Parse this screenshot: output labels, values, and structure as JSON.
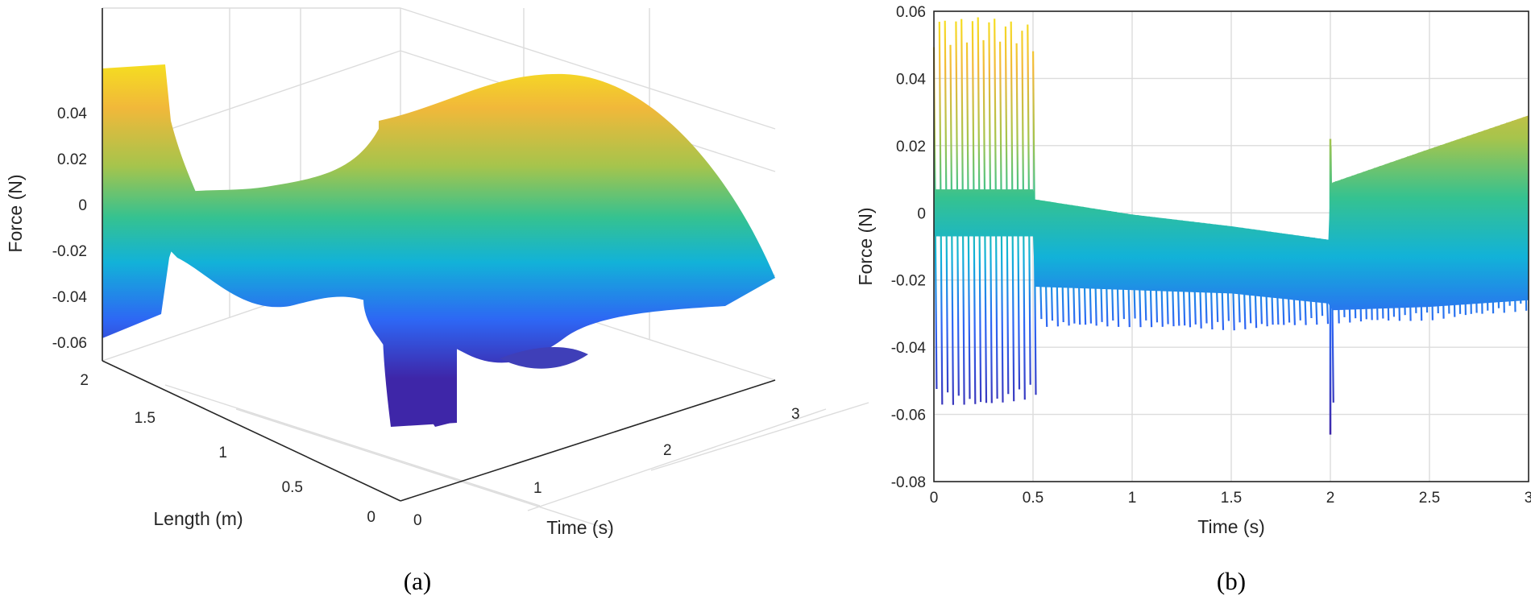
{
  "figure": {
    "colormap": [
      "#3e26a8",
      "#2e66f4",
      "#12b2d8",
      "#35c290",
      "#a6c44c",
      "#f1b83a",
      "#f6e41c"
    ]
  },
  "chart_data": [
    {
      "panel_label": "(a)",
      "type": "surface",
      "xlabel": "Time (s)",
      "ylabel": "Length (m)",
      "zlabel": "Force (N)",
      "x_ticks": [
        "0",
        "1",
        "2",
        "3"
      ],
      "y_ticks": [
        "0",
        "0.5",
        "1",
        "1.5",
        "2"
      ],
      "z_ticks": [
        "-0.06",
        "-0.04",
        "-0.02",
        "0",
        "0.02",
        "0.04"
      ],
      "xlim": [
        0,
        3
      ],
      "ylim": [
        0,
        2
      ],
      "zlim": [
        -0.065,
        0.06
      ],
      "grid": true,
      "features": [
        {
          "x": 0.0,
          "y": 2.0,
          "z_max": 0.058,
          "z_min": -0.057
        },
        {
          "x": 0.0,
          "y": 0.0,
          "z_max": 0.049,
          "z_min": -0.052
        },
        {
          "x": 2.0,
          "y": 1.0,
          "z_max": 0.06,
          "z_min": -0.04
        },
        {
          "x": 3.0,
          "y": 2.0,
          "z_max": -0.032,
          "z_min": -0.036
        }
      ]
    },
    {
      "panel_label": "(b)",
      "type": "line",
      "xlabel": "Time (s)",
      "ylabel": "Force (N)",
      "x_ticks": [
        "0",
        "0.5",
        "1",
        "1.5",
        "2",
        "2.5",
        "3"
      ],
      "y_ticks": [
        "-0.08",
        "-0.06",
        "-0.04",
        "-0.02",
        "0",
        "0.02",
        "0.04",
        "0.06"
      ],
      "xlim": [
        0,
        3
      ],
      "ylim": [
        -0.08,
        0.06
      ],
      "grid": true,
      "envelope": {
        "x": [
          0,
          0.25,
          0.5,
          0.51,
          1.0,
          1.5,
          1.99,
          2.0,
          2.01,
          2.5,
          3.0
        ],
        "upper": [
          0.058,
          0.059,
          0.056,
          0.004,
          -0.0005,
          -0.004,
          -0.008,
          0.022,
          0.009,
          0.019,
          0.029
        ],
        "lower": [
          -0.057,
          -0.058,
          -0.055,
          -0.034,
          -0.034,
          -0.035,
          -0.033,
          -0.066,
          -0.033,
          -0.032,
          -0.029
        ],
        "band_upper": [
          0.007,
          0.007,
          0.007,
          0.004,
          -0.0005,
          -0.004,
          -0.008,
          0.008,
          0.009,
          0.019,
          0.029
        ],
        "band_lower": [
          -0.007,
          -0.007,
          -0.007,
          -0.022,
          -0.023,
          -0.024,
          -0.027,
          -0.028,
          -0.029,
          -0.028,
          -0.026
        ]
      }
    }
  ]
}
